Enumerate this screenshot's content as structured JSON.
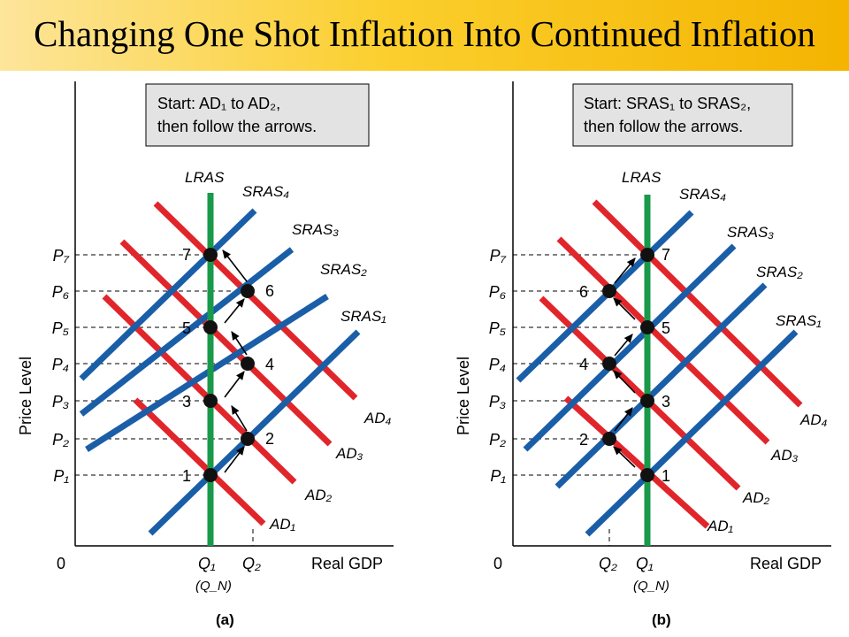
{
  "title": "Changing One Shot Inflation Into Continued Inflation",
  "colors": {
    "ad_curve": "#e0262b",
    "sras_curve": "#1a5ea8",
    "lras_curve": "#189a4a",
    "header_band": "#fbcf2e"
  },
  "panels": [
    {
      "id": "a",
      "caption": "(a)",
      "note_lines": [
        "Start: AD₁ to AD₂,",
        "then follow the arrows."
      ],
      "lras_label": "LRAS",
      "y_axis_label": "Price Level",
      "x_axis_label": "Real GDP",
      "origin_label": "0",
      "q_labels": [
        "Q₁",
        "(Q_N)",
        "Q₂"
      ],
      "price_labels": [
        "P₁",
        "P₂",
        "P₃",
        "P₄",
        "P₅",
        "P₆",
        "P₇"
      ],
      "point_labels": [
        "1",
        "2",
        "3",
        "4",
        "5",
        "6",
        "7"
      ],
      "ad_labels": [
        "AD₁",
        "AD₂",
        "AD₃",
        "AD₄"
      ],
      "sras_labels": [
        "SRAS₁",
        "SRAS₂",
        "SRAS₃",
        "SRAS₄"
      ]
    },
    {
      "id": "b",
      "caption": "(b)",
      "note_lines": [
        "Start: SRAS₁ to SRAS₂,",
        "then follow the arrows."
      ],
      "lras_label": "LRAS",
      "y_axis_label": "Price Level",
      "x_axis_label": "Real GDP",
      "origin_label": "0",
      "q_labels": [
        "Q₂",
        "Q₁",
        "(Q_N)"
      ],
      "price_labels": [
        "P₁",
        "P₂",
        "P₃",
        "P₄",
        "P₅",
        "P₆",
        "P₇"
      ],
      "point_labels": [
        "1",
        "2",
        "3",
        "4",
        "5",
        "6",
        "7"
      ],
      "ad_labels": [
        "AD₁",
        "AD₂",
        "AD₃",
        "AD₄"
      ],
      "sras_labels": [
        "SRAS₁",
        "SRAS₂",
        "SRAS₃",
        "SRAS₄"
      ]
    }
  ]
}
